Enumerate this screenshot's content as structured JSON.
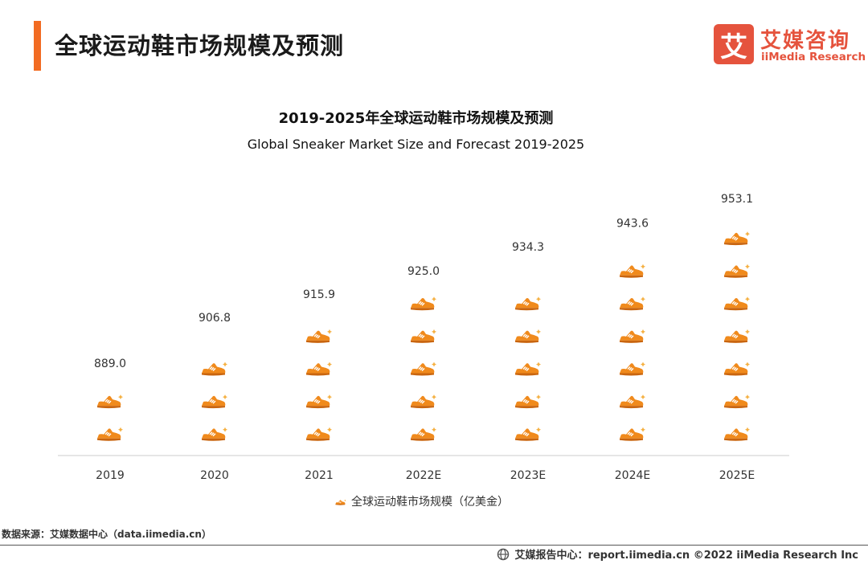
{
  "header": {
    "title": "全球运动鞋市场规模及预测",
    "logo_mark": "艾",
    "logo_cn": "艾媒咨询",
    "logo_en": "iiMedia Research"
  },
  "chart_data": {
    "type": "bar",
    "title": "2019-2025年全球运动鞋市场规模及预测",
    "subtitle": "Global Sneaker Market Size and Forecast 2019-2025",
    "categories": [
      "2019",
      "2020",
      "2021",
      "2022E",
      "2023E",
      "2024E",
      "2025E"
    ],
    "series": [
      {
        "name": "全球运动鞋市场规模（亿美金）",
        "values": [
          889.0,
          906.8,
          915.9,
          925.0,
          934.3,
          943.6,
          953.1
        ]
      }
    ],
    "value_labels": [
      "889.0",
      "906.8",
      "915.9",
      "925.0",
      "934.3",
      "943.6",
      "953.1"
    ],
    "style": "pictograph",
    "icon": "sneaker-icon",
    "ylim": [
      860,
      960
    ],
    "grid": false,
    "legend_position": "bottom",
    "colors": {
      "primary": "#f08a1c",
      "accent": "#f5b041",
      "axis": "#cccccc"
    }
  },
  "legend": {
    "label": "全球运动鞋市场规模（亿美金）"
  },
  "source": "数据来源：艾媒数据中心（data.iimedia.cn）",
  "footer": {
    "text": "艾媒报告中心：report.iimedia.cn  ©2022  iiMedia Research  Inc"
  }
}
